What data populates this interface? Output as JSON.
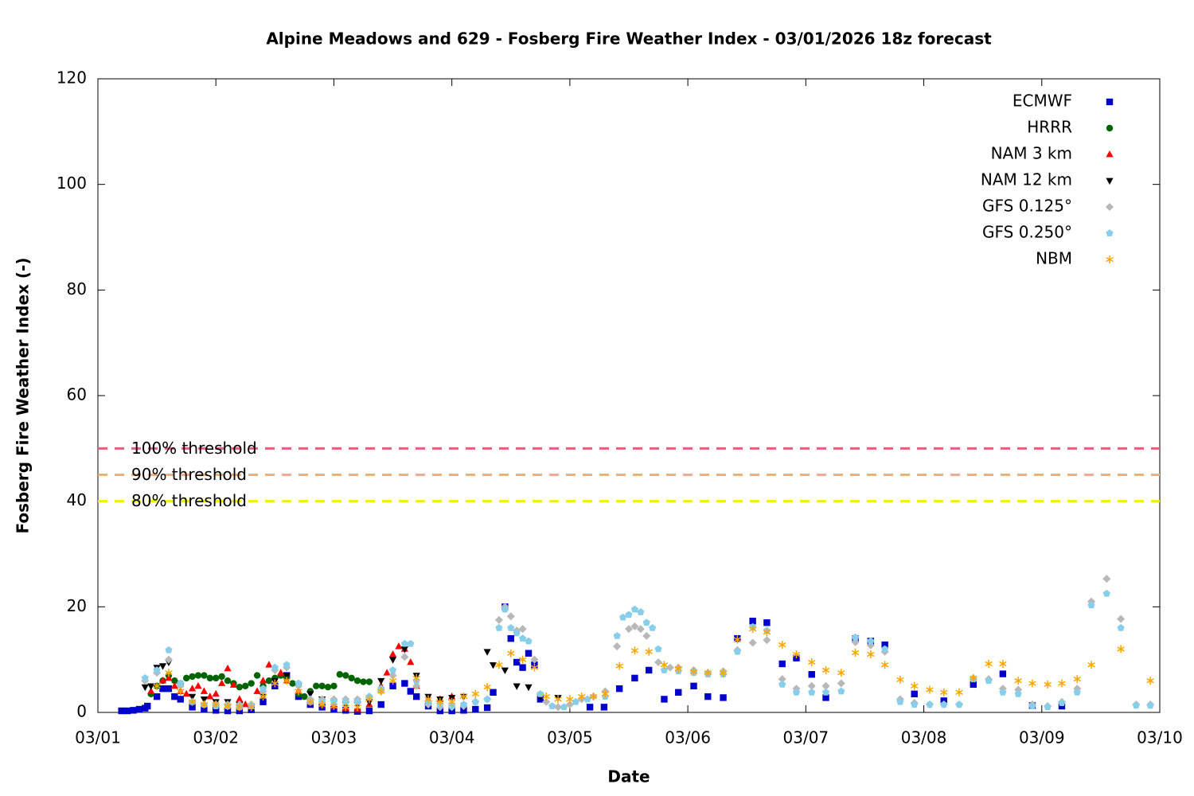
{
  "chart_data": {
    "type": "scatter",
    "title": "Alpine Meadows and 629 - Fosberg Fire Weather Index - 03/01/2026 18z forecast",
    "x_label": "Date",
    "y_label": "Fosberg Fire Weather Index (-)",
    "xlim": [
      1,
      10
    ],
    "ylim": [
      0,
      120
    ],
    "xticks": [
      {
        "value": 1,
        "label": "03/01"
      },
      {
        "value": 2,
        "label": "03/02"
      },
      {
        "value": 3,
        "label": "03/03"
      },
      {
        "value": 4,
        "label": "03/04"
      },
      {
        "value": 5,
        "label": "03/05"
      },
      {
        "value": 6,
        "label": "03/06"
      },
      {
        "value": 7,
        "label": "03/07"
      },
      {
        "value": 8,
        "label": "03/08"
      },
      {
        "value": 9,
        "label": "03/09"
      },
      {
        "value": 10,
        "label": "03/10"
      }
    ],
    "yticks": [
      0,
      20,
      40,
      60,
      80,
      100,
      120
    ],
    "grid": false,
    "legend": "top-right",
    "thresholds": [
      {
        "label": "100% threshold",
        "value": 50,
        "color": "#e0607e"
      },
      {
        "label": "90% threshold",
        "value": 45,
        "color": "#f4b074"
      },
      {
        "label": "80% threshold",
        "value": 40,
        "color": "#f0f000"
      }
    ],
    "series": [
      {
        "name": "ECMWF",
        "color": "#0000cd",
        "marker": "square",
        "x": [
          1.2,
          1.25,
          1.3,
          1.35,
          1.4,
          1.42,
          1.5,
          1.55,
          1.6,
          1.65,
          1.7,
          1.8,
          1.9,
          2.0,
          2.1,
          2.2,
          2.3,
          2.4,
          2.5,
          2.6,
          2.7,
          2.8,
          2.9,
          3.0,
          3.1,
          3.2,
          3.3,
          3.4,
          3.5,
          3.6,
          3.65,
          3.7,
          3.8,
          3.9,
          4.0,
          4.1,
          4.2,
          4.3,
          4.35,
          4.45,
          4.5,
          4.55,
          4.6,
          4.65,
          4.7,
          4.75,
          5.17,
          5.29,
          5.42,
          5.55,
          5.67,
          5.8,
          5.92,
          6.05,
          6.17,
          6.3,
          6.42,
          6.55,
          6.67,
          6.8,
          6.92,
          7.05,
          7.17,
          7.42,
          7.55,
          7.67,
          7.92,
          8.17,
          8.42,
          8.67,
          8.92,
          9.17
        ],
        "values": [
          0.3,
          0.3,
          0.4,
          0.6,
          0.8,
          1.2,
          3,
          4.5,
          4.5,
          3,
          2.5,
          1,
          0.6,
          0.4,
          0.3,
          0.3,
          0.5,
          2,
          5,
          7,
          3,
          1.5,
          1,
          0.6,
          0.4,
          0.2,
          0.3,
          1.5,
          5,
          5.5,
          4,
          3,
          1.2,
          0.3,
          0.3,
          0.4,
          0.6,
          0.9,
          3.8,
          20,
          14,
          9.5,
          8.5,
          11.2,
          9,
          2.5,
          1,
          1,
          4.5,
          6.5,
          8,
          2.5,
          3.8,
          5,
          3,
          2.8,
          14,
          17.3,
          17,
          9.2,
          10.3,
          7.2,
          2.8,
          14,
          13.5,
          12.8,
          3.5,
          2.2,
          5.3,
          7.3,
          1.3,
          1.2
        ]
      },
      {
        "name": "HRRR",
        "color": "#006400",
        "marker": "circle",
        "x": [
          1.45,
          1.5,
          1.55,
          1.6,
          1.65,
          1.7,
          1.75,
          1.8,
          1.85,
          1.9,
          1.95,
          2.0,
          2.05,
          2.1,
          2.15,
          2.2,
          2.25,
          2.3,
          2.35,
          2.4,
          2.45,
          2.5,
          2.55,
          2.6,
          2.65,
          2.7,
          2.75,
          2.8,
          2.85,
          2.9,
          2.95,
          3.0,
          3.05,
          3.1,
          3.15,
          3.2,
          3.25,
          3.3
        ],
        "values": [
          3.5,
          5,
          6,
          7,
          6,
          5.5,
          6.5,
          6.8,
          7,
          7,
          6.5,
          6.5,
          6.8,
          6,
          5.5,
          4.8,
          5,
          5.5,
          7,
          5,
          6,
          6.5,
          7,
          6.5,
          5.5,
          3.5,
          3,
          4,
          5,
          5,
          4.8,
          5,
          7.2,
          7,
          6.5,
          6,
          5.8,
          5.8
        ]
      },
      {
        "name": "NAM 3 km",
        "color": "#ff0000",
        "marker": "triangle-up",
        "x": [
          1.45,
          1.55,
          1.6,
          1.65,
          1.7,
          1.75,
          1.8,
          1.85,
          1.9,
          1.95,
          2.0,
          2.05,
          2.1,
          2.15,
          2.2,
          2.25,
          2.3,
          2.35,
          2.4,
          2.45,
          2.5,
          2.55,
          2.6,
          2.7,
          2.8,
          2.9,
          3.0,
          3.1,
          3.2,
          3.3,
          3.4,
          3.45,
          3.5,
          3.55,
          3.6,
          3.65,
          3.7,
          3.8,
          3.9,
          4.0
        ],
        "values": [
          4,
          6,
          6.5,
          5,
          4,
          3.5,
          4.5,
          5,
          4,
          3,
          3.5,
          5.5,
          8.3,
          5.2,
          2.5,
          1.5,
          1.2,
          4,
          6,
          9,
          8.5,
          7.5,
          6,
          4,
          2,
          1.5,
          1.2,
          0.8,
          0.6,
          1.5,
          5,
          7.5,
          11,
          12.5,
          12,
          9.5,
          5,
          2.5,
          2.5,
          3
        ]
      },
      {
        "name": "NAM 12 km",
        "color": "#000000",
        "marker": "triangle-down",
        "x": [
          1.4,
          1.45,
          1.5,
          1.55,
          1.6,
          1.7,
          1.8,
          1.9,
          2.0,
          2.1,
          2.2,
          2.3,
          2.4,
          2.5,
          2.6,
          2.7,
          2.8,
          2.9,
          3.0,
          3.1,
          3.2,
          3.3,
          3.4,
          3.5,
          3.6,
          3.7,
          3.8,
          3.9,
          4.0,
          4.1,
          4.3,
          4.35,
          4.45,
          4.55,
          4.65,
          4.75,
          4.9
        ],
        "values": [
          4.8,
          5,
          8.5,
          8.8,
          9.5,
          5,
          3,
          2.5,
          2,
          2,
          1.5,
          1.2,
          3,
          6,
          7,
          5,
          3.5,
          2.5,
          1.8,
          1.5,
          1.5,
          2,
          6,
          10,
          12,
          7,
          3,
          2.5,
          2.8,
          3,
          11.5,
          9,
          8,
          5,
          4.8,
          3,
          2.8
        ]
      },
      {
        "name": "GFS 0.125°",
        "color": "#b8b8b8",
        "marker": "diamond",
        "x": [
          1.4,
          1.5,
          1.6,
          1.7,
          1.8,
          1.9,
          2.0,
          2.1,
          2.2,
          2.3,
          2.4,
          2.5,
          2.6,
          2.7,
          2.8,
          2.9,
          3.0,
          3.1,
          3.2,
          3.3,
          3.4,
          3.5,
          3.6,
          3.7,
          3.8,
          3.9,
          4.0,
          4.1,
          4.2,
          4.3,
          4.4,
          4.45,
          4.5,
          4.55,
          4.6,
          4.7,
          4.8,
          4.9,
          5.0,
          5.1,
          5.2,
          5.3,
          5.4,
          5.5,
          5.55,
          5.6,
          5.65,
          5.75,
          5.85,
          5.92,
          6.05,
          6.17,
          6.3,
          6.42,
          6.55,
          6.67,
          6.8,
          6.92,
          7.05,
          7.17,
          7.3,
          7.42,
          7.55,
          7.67,
          7.8,
          7.92,
          8.05,
          8.17,
          8.3,
          8.42,
          8.55,
          8.67,
          8.8,
          8.92,
          9.05,
          9.17,
          9.3,
          9.42,
          9.55,
          9.67,
          9.8,
          9.92
        ],
        "values": [
          6,
          7.5,
          10,
          5,
          2,
          1.5,
          1.5,
          1.5,
          1.5,
          1.5,
          4,
          8,
          8.5,
          5,
          2.5,
          2.5,
          2.5,
          2.5,
          2.5,
          3,
          4,
          7,
          10.5,
          5,
          1.5,
          1,
          1,
          1.2,
          2,
          2.5,
          17.5,
          20,
          18.2,
          15.5,
          15.8,
          10,
          2,
          1,
          1.5,
          2.5,
          3,
          4,
          12.5,
          15.8,
          16.3,
          15.8,
          14.5,
          9.5,
          8.5,
          8.5,
          8,
          7.5,
          7.8,
          11.8,
          13.2,
          13.7,
          6.3,
          4.5,
          5,
          5,
          5.5,
          13.3,
          12.7,
          11.5,
          2.5,
          1.8,
          1.5,
          1.5,
          1.5,
          6.5,
          6.3,
          4.5,
          4.3,
          1.5,
          1.2,
          2,
          4.5,
          21,
          25.3,
          17.7,
          1.5,
          1.5
        ]
      },
      {
        "name": "GFS 0.250°",
        "color": "#87ceeb",
        "marker": "pentagon",
        "x": [
          1.4,
          1.5,
          1.6,
          1.7,
          1.8,
          1.9,
          2.0,
          2.1,
          2.2,
          2.3,
          2.4,
          2.5,
          2.6,
          2.7,
          2.8,
          2.9,
          3.0,
          3.1,
          3.2,
          3.3,
          3.4,
          3.5,
          3.6,
          3.65,
          3.7,
          3.8,
          3.9,
          4.0,
          4.1,
          4.2,
          4.3,
          4.4,
          4.45,
          4.5,
          4.55,
          4.6,
          4.65,
          4.75,
          4.85,
          4.95,
          5.05,
          5.15,
          5.3,
          5.4,
          5.45,
          5.5,
          5.55,
          5.6,
          5.65,
          5.7,
          5.75,
          5.8,
          5.92,
          6.05,
          6.17,
          6.3,
          6.42,
          6.55,
          6.67,
          6.8,
          6.92,
          7.05,
          7.17,
          7.3,
          7.42,
          7.55,
          7.67,
          7.8,
          7.92,
          8.05,
          8.17,
          8.3,
          8.42,
          8.55,
          8.67,
          8.8,
          8.92,
          9.05,
          9.17,
          9.3,
          9.42,
          9.55,
          9.67,
          9.8,
          9.92
        ],
        "values": [
          6.5,
          8,
          11.8,
          5.5,
          2,
          1.5,
          1.2,
          1.2,
          1,
          1.2,
          4.5,
          8.5,
          9,
          5.5,
          2,
          2,
          2,
          2,
          2,
          3,
          4.5,
          8,
          13,
          13,
          6,
          2,
          1.5,
          1.2,
          1.5,
          2,
          2.5,
          16,
          19.5,
          16,
          15,
          14,
          13.5,
          3.5,
          1.2,
          1,
          2,
          2.5,
          3,
          14.5,
          18,
          18.5,
          19.5,
          19,
          17,
          16,
          12,
          8,
          7.8,
          7.5,
          7.2,
          7.2,
          11.5,
          16.2,
          15.5,
          5.3,
          3.8,
          3.8,
          3.8,
          4,
          14.2,
          13.5,
          12,
          2,
          1.5,
          1.5,
          1.5,
          1.5,
          6.3,
          6,
          3.8,
          3.5,
          1.2,
          1,
          1.8,
          3.8,
          20.3,
          22.5,
          16,
          1.3,
          1.3
        ]
      },
      {
        "name": "NBM",
        "color": "#ffa500",
        "marker": "asterisk",
        "x": [
          1.5,
          1.6,
          1.7,
          1.8,
          1.9,
          2.0,
          2.1,
          2.2,
          2.3,
          2.4,
          2.5,
          2.6,
          2.7,
          2.8,
          2.9,
          3.0,
          3.1,
          3.2,
          3.3,
          3.4,
          3.5,
          3.7,
          3.8,
          3.9,
          4.0,
          4.1,
          4.2,
          4.3,
          4.4,
          4.5,
          4.6,
          4.7,
          4.8,
          4.9,
          5.0,
          5.1,
          5.2,
          5.3,
          5.42,
          5.55,
          5.67,
          5.8,
          5.92,
          6.05,
          6.17,
          6.3,
          6.42,
          6.55,
          6.67,
          6.8,
          6.92,
          7.05,
          7.17,
          7.3,
          7.42,
          7.55,
          7.67,
          7.8,
          7.92,
          8.05,
          8.17,
          8.3,
          8.42,
          8.55,
          8.67,
          8.8,
          8.92,
          9.05,
          9.17,
          9.3,
          9.42,
          9.67,
          9.92
        ],
        "values": [
          5,
          7.5,
          4,
          2,
          1.5,
          1.5,
          1.2,
          1,
          1,
          3,
          5.5,
          6,
          4,
          2,
          1.5,
          1.2,
          1,
          1,
          2.5,
          4,
          6,
          6.5,
          2.5,
          2,
          2,
          3,
          3.5,
          4.8,
          9,
          11.2,
          10,
          8.5,
          3,
          2.5,
          2.5,
          3,
          3,
          3.5,
          8.8,
          11.7,
          11.5,
          9,
          8.3,
          7.7,
          7.5,
          7.5,
          13.8,
          15.8,
          15.2,
          12.8,
          11,
          9.5,
          8,
          7.5,
          11.3,
          11,
          9,
          6.2,
          5,
          4.3,
          3.8,
          3.8,
          6.5,
          9.2,
          9.2,
          6,
          5.5,
          5.3,
          5.5,
          6.3,
          9,
          12,
          6
        ]
      }
    ]
  }
}
